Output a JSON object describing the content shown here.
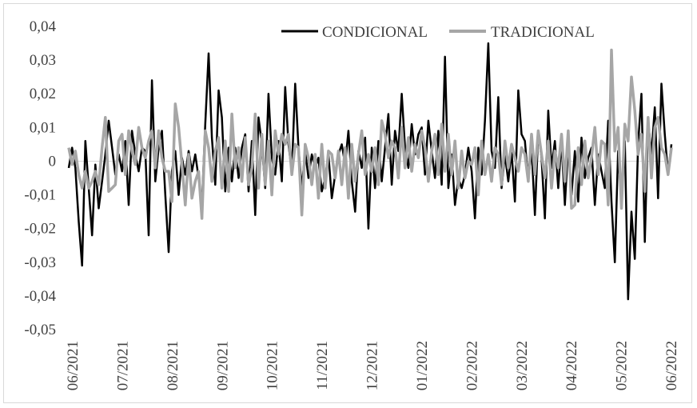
{
  "chart_data": {
    "type": "line",
    "title": "",
    "xlabel": "",
    "ylabel": "",
    "ylim": [
      -0.05,
      0.04
    ],
    "yticks": [
      0.04,
      0.03,
      0.02,
      0.01,
      0,
      -0.01,
      -0.02,
      -0.03,
      -0.04,
      -0.05
    ],
    "ytick_labels": [
      "0,04",
      "0,03",
      "0,02",
      "0,01",
      "0",
      "-0,01",
      "-0,02",
      "-0,03",
      "-0,04",
      "-0,05"
    ],
    "xtick_labels": [
      "06/2021",
      "07/2021",
      "08/2021",
      "09/2021",
      "10/2021",
      "11/2021",
      "12/2021",
      "01/2022",
      "02/2022",
      "03/2022",
      "04/2022",
      "05/2022",
      "06/2022"
    ],
    "grid": false,
    "zero_line": true,
    "legend": "top-right",
    "series": [
      {
        "name": "CONDICIONAL",
        "color": "#000000",
        "values": [
          -0.002,
          0.004,
          -0.002,
          -0.018,
          -0.031,
          0.006,
          -0.008,
          -0.022,
          -0.001,
          -0.014,
          -0.006,
          0.002,
          0.012,
          0.004,
          -0.004,
          0.002,
          -0.003,
          0.006,
          -0.013,
          0.009,
          0.002,
          -0.003,
          0.004,
          0.003,
          -0.022,
          0.024,
          -0.006,
          0.004,
          0.009,
          -0.01,
          -0.027,
          -0.003,
          0.003,
          -0.01,
          0.001,
          -0.004,
          0.003,
          -0.003,
          0.002,
          -0.005,
          -0.013,
          0.011,
          0.032,
          0.007,
          -0.007,
          0.021,
          0.013,
          -0.009,
          0.004,
          -0.006,
          0.004,
          -0.005,
          0.004,
          0.008,
          -0.009,
          0.006,
          -0.016,
          0.013,
          0.005,
          -0.008,
          0.02,
          0.001,
          -0.004,
          0.006,
          -0.006,
          0.022,
          0.005,
          -0.003,
          0.023,
          0.004,
          -0.008,
          0.003,
          -0.005,
          0.002,
          -0.002,
          0.001,
          -0.009,
          -0.005,
          0.002,
          -0.011,
          -0.004,
          0.002,
          0.005,
          -0.001,
          0.009,
          -0.006,
          -0.015,
          0.003,
          -0.002,
          0.007,
          -0.02,
          0.004,
          -0.008,
          0.006,
          -0.006,
          0.004,
          0.014,
          -0.007,
          0.009,
          0.003,
          0.02,
          0.004,
          -0.002,
          0.011,
          0.002,
          0.008,
          0.01,
          -0.004,
          0.012,
          0.003,
          -0.005,
          0.009,
          -0.007,
          0.031,
          -0.008,
          0.002,
          -0.013,
          -0.005,
          -0.008,
          -0.004,
          0.004,
          -0.003,
          -0.017,
          0.004,
          -0.004,
          0.012,
          0.035,
          0.003,
          -0.002,
          0.019,
          -0.008,
          0.002,
          -0.006,
          0.003,
          -0.012,
          0.021,
          0.008,
          0.006,
          -0.006,
          0.004,
          -0.016,
          0.009,
          0.001,
          -0.017,
          0.015,
          -0.002,
          0.006,
          -0.008,
          0.006,
          -0.013,
          0.005,
          -0.01,
          0.003,
          -0.012,
          0.007,
          -0.005,
          0.001,
          0.004,
          -0.013,
          0.002,
          -0.003,
          -0.008,
          0.012,
          -0.012,
          -0.03,
          0.003,
          -0.012,
          0.006,
          -0.041,
          -0.015,
          -0.029,
          0.005,
          0.02,
          -0.024,
          0.012,
          0.002,
          0.016,
          -0.011,
          0.023,
          0.008,
          -0.004,
          0.005
        ]
      },
      {
        "name": "TRADICIONAL",
        "color": "#a6a6a6",
        "values": [
          0.004,
          -0.001,
          0.003,
          -0.004,
          -0.008,
          -0.003,
          -0.008,
          -0.006,
          -0.003,
          -0.007,
          0.004,
          0.013,
          -0.009,
          -0.008,
          -0.007,
          0.006,
          0.008,
          -0.004,
          0.009,
          0.003,
          -0.001,
          0.01,
          0.004,
          0.001,
          0.006,
          0.009,
          -0.002,
          0.009,
          0.001,
          -0.003,
          -0.003,
          -0.012,
          0.017,
          0.01,
          -0.001,
          -0.013,
          0.002,
          -0.011,
          -0.006,
          -0.003,
          -0.017,
          0.009,
          0.004,
          -0.006,
          0.003,
          0.007,
          -0.008,
          0.006,
          -0.009,
          0.014,
          -0.002,
          0.004,
          -0.006,
          0.007,
          -0.007,
          -0.002,
          0.014,
          -0.008,
          0.008,
          -0.007,
          0.006,
          -0.01,
          0.009,
          0.002,
          0.008,
          0.005,
          0.008,
          -0.004,
          0.005,
          0.004,
          -0.016,
          0.005,
          0.001,
          -0.007,
          0.002,
          -0.011,
          0.005,
          -0.008,
          0.003,
          0.002,
          -0.005,
          0.003,
          -0.007,
          0.004,
          -0.011,
          0.005,
          -0.006,
          0.002,
          0.009,
          -0.004,
          0.002,
          -0.003,
          0.004,
          -0.007,
          0.012,
          0.008,
          0.001,
          0.006,
          0.004,
          -0.005,
          0.01,
          -0.002,
          0.007,
          -0.003,
          0.005,
          0.001,
          0.009,
          0.004,
          -0.006,
          0.003,
          0.008,
          -0.004,
          0.011,
          -0.003,
          0.008,
          -0.004,
          0.006,
          -0.008,
          0.003,
          -0.005,
          0.0,
          -0.001,
          0.004,
          -0.01,
          0.006,
          -0.004,
          0.002,
          -0.006,
          0.004,
          0.002,
          -0.007,
          0.006,
          -0.002,
          0.005,
          0.001,
          -0.003,
          0.004,
          0.002,
          -0.006,
          0.008,
          -0.004,
          0.009,
          0.002,
          -0.005,
          0.006,
          -0.008,
          0.003,
          -0.002,
          0.008,
          -0.006,
          0.009,
          -0.014,
          -0.013,
          0.004,
          -0.007,
          0.006,
          -0.005,
          0.001,
          0.01,
          -0.004,
          0.006,
          0.005,
          -0.013,
          0.033,
          0.003,
          0.01,
          -0.014,
          0.011,
          0.006,
          0.025,
          0.015,
          0.002,
          0.008,
          -0.009,
          0.013,
          -0.005,
          0.01,
          0.013,
          0.004,
          0.002,
          -0.004,
          0.004
        ]
      }
    ]
  }
}
